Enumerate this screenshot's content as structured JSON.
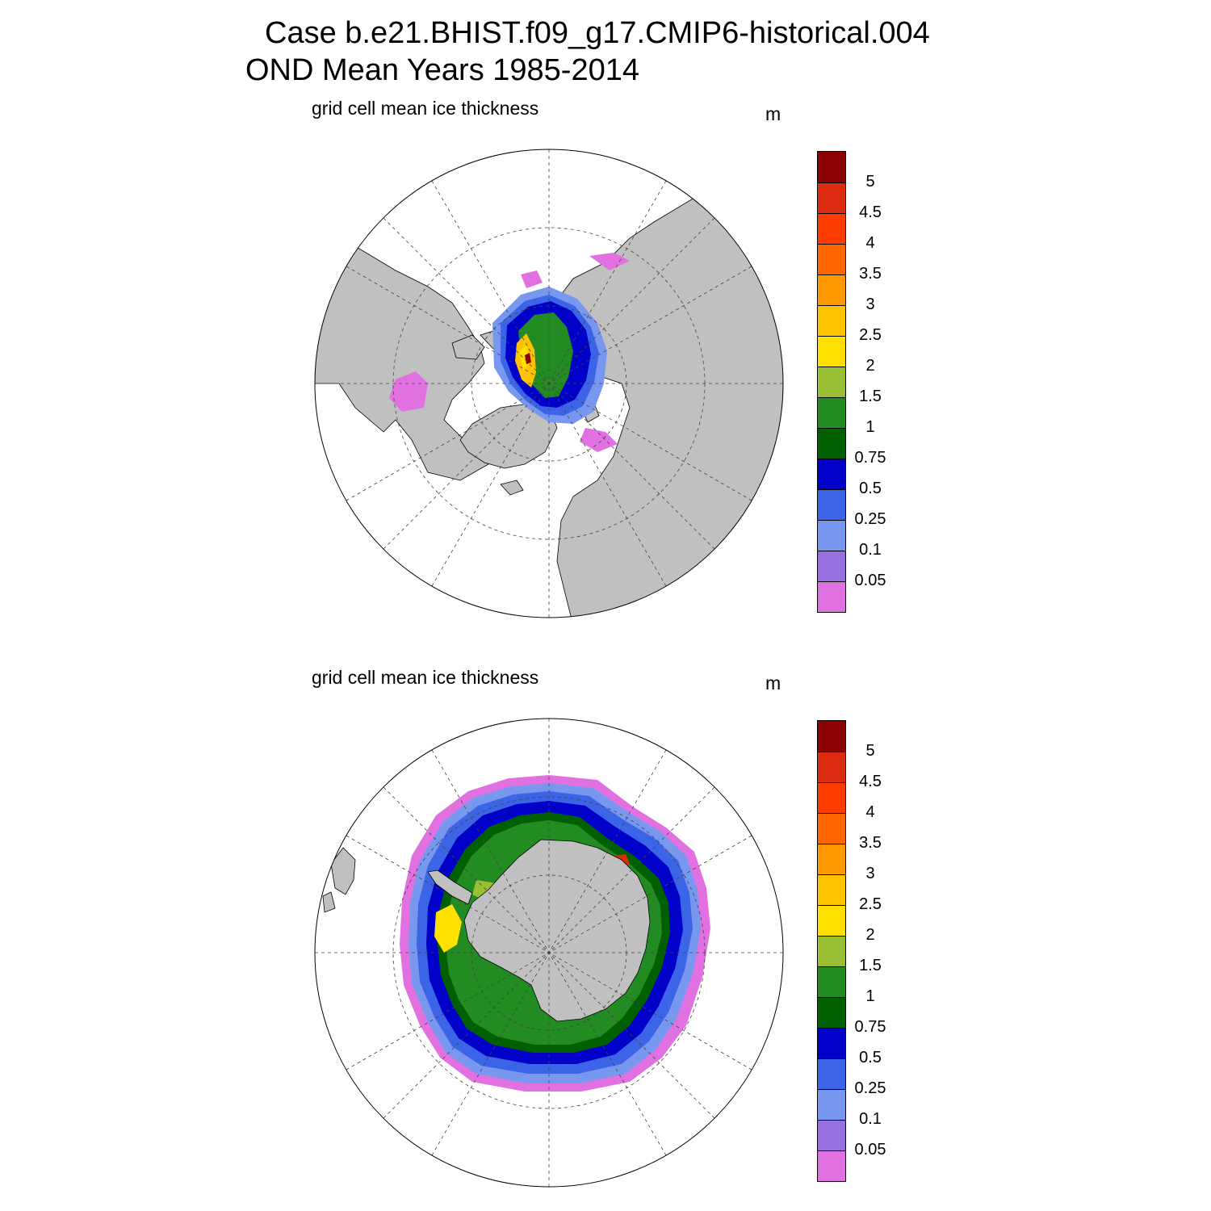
{
  "title": {
    "line1": "Case b.e21.BHIST.f09_g17.CMIP6-historical.004",
    "line2": "OND Mean   Years 1985-2014"
  },
  "panels": [
    {
      "id": "north",
      "label": "grid cell mean ice thickness",
      "units": "m"
    },
    {
      "id": "south",
      "label": "grid cell mean ice thickness",
      "units": "m"
    }
  ],
  "colorbar": {
    "levels": [
      "5",
      "4.5",
      "4",
      "3.5",
      "3",
      "2.5",
      "2",
      "1.5",
      "1",
      "0.75",
      "0.5",
      "0.25",
      "0.1",
      "0.05"
    ],
    "colors": [
      "#8b0000",
      "#dd2c12",
      "#ff3c00",
      "#ff6600",
      "#ff9900",
      "#ffc300",
      "#ffe000",
      "#99c035",
      "#228b22",
      "#006000",
      "#0000c8",
      "#3c64e6",
      "#7898f0",
      "#9570de",
      "#e170e0"
    ]
  },
  "map_colors": {
    "land": "#c0c0c0",
    "ocean": "#ffffff"
  }
}
